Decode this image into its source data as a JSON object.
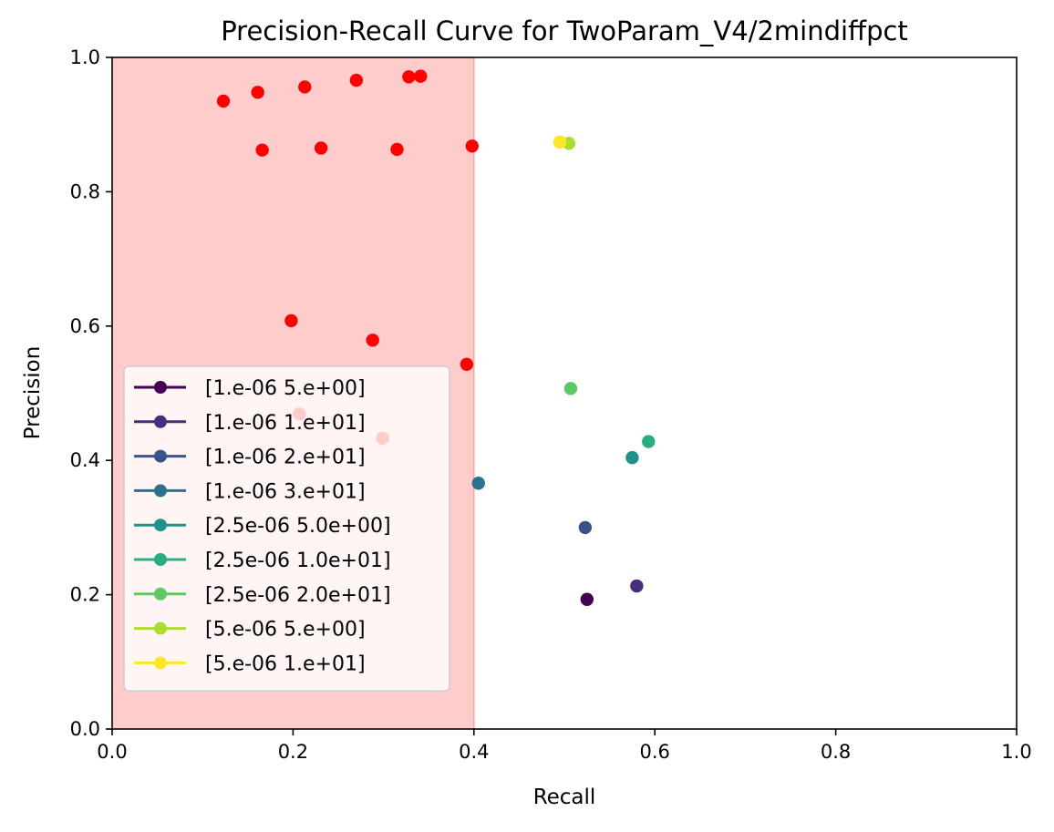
{
  "chart_data": {
    "type": "scatter",
    "title": "Precision-Recall Curve for TwoParam_V4/2mindiffpct",
    "xlabel": "Recall",
    "ylabel": "Precision",
    "xlim": [
      0.0,
      1.0
    ],
    "ylim": [
      0.0,
      1.0
    ],
    "x_ticks": [
      "0.0",
      "0.2",
      "0.4",
      "0.6",
      "0.8",
      "1.0"
    ],
    "y_ticks": [
      "0.0",
      "0.2",
      "0.4",
      "0.6",
      "0.8",
      "1.0"
    ],
    "grid": false,
    "legend_position": "lower-left",
    "shaded_region": {
      "x_from": 0.0,
      "x_to": 0.4,
      "color": "#ffcccc",
      "edge_color": "#f4a5a5"
    },
    "red_points": {
      "color": "#ff0000",
      "points": [
        {
          "x": 0.123,
          "y": 0.935
        },
        {
          "x": 0.161,
          "y": 0.948
        },
        {
          "x": 0.213,
          "y": 0.956
        },
        {
          "x": 0.27,
          "y": 0.966
        },
        {
          "x": 0.328,
          "y": 0.971
        },
        {
          "x": 0.341,
          "y": 0.972
        },
        {
          "x": 0.166,
          "y": 0.862
        },
        {
          "x": 0.231,
          "y": 0.865
        },
        {
          "x": 0.315,
          "y": 0.863
        },
        {
          "x": 0.398,
          "y": 0.868
        },
        {
          "x": 0.198,
          "y": 0.608
        },
        {
          "x": 0.288,
          "y": 0.579
        },
        {
          "x": 0.392,
          "y": 0.543
        },
        {
          "x": 0.207,
          "y": 0.469
        },
        {
          "x": 0.299,
          "y": 0.433
        }
      ]
    },
    "series": [
      {
        "name": "[1.e-06 5.e+00]",
        "color": "#440154",
        "x": [
          0.525
        ],
        "y": [
          0.193
        ]
      },
      {
        "name": "[1.e-06 1.e+01]",
        "color": "#472d7b",
        "x": [
          0.58
        ],
        "y": [
          0.213
        ]
      },
      {
        "name": "[1.e-06 2.e+01]",
        "color": "#3b528b",
        "x": [
          0.523
        ],
        "y": [
          0.3
        ]
      },
      {
        "name": "[1.e-06 3.e+01]",
        "color": "#2c728e",
        "x": [
          0.405
        ],
        "y": [
          0.366
        ]
      },
      {
        "name": "[2.5e-06 5.0e+00]",
        "color": "#21918c",
        "x": [
          0.575
        ],
        "y": [
          0.404
        ]
      },
      {
        "name": "[2.5e-06 1.0e+01]",
        "color": "#28ae80",
        "x": [
          0.593
        ],
        "y": [
          0.428
        ]
      },
      {
        "name": "[2.5e-06 2.0e+01]",
        "color": "#5ec962",
        "x": [
          0.507
        ],
        "y": [
          0.507
        ]
      },
      {
        "name": "[5.e-06 5.e+00]",
        "color": "#addc30",
        "x": [
          0.505
        ],
        "y": [
          0.872
        ]
      },
      {
        "name": "[5.e-06 1.e+01]",
        "color": "#fde725",
        "x": [
          0.495
        ],
        "y": [
          0.874
        ]
      }
    ]
  }
}
